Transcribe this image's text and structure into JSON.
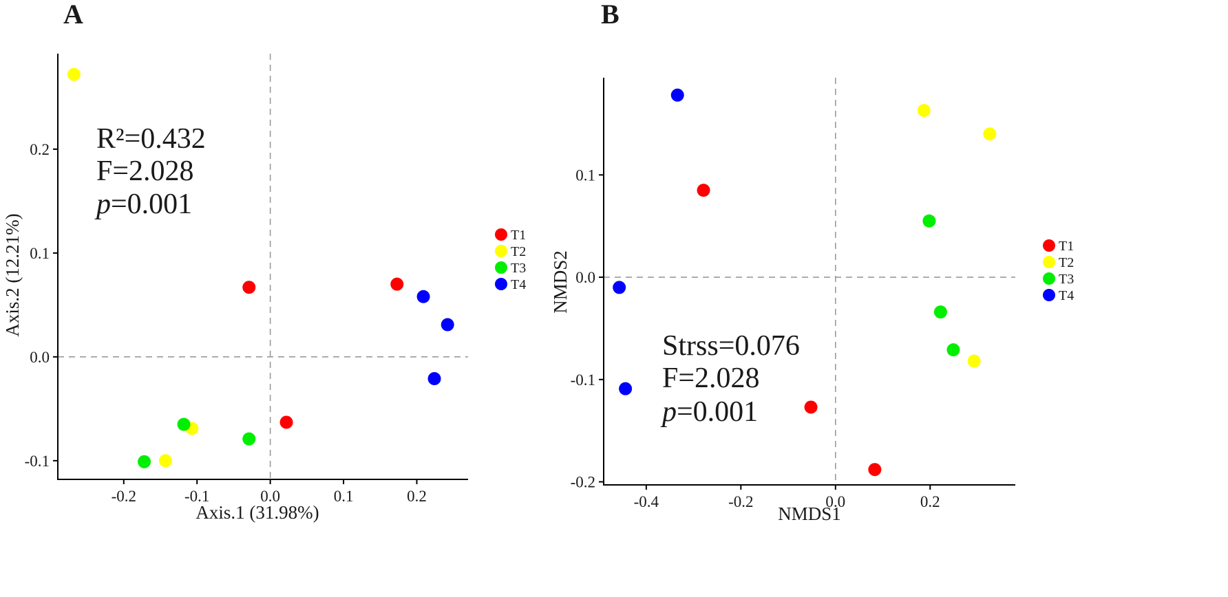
{
  "colors": {
    "T1": "#ff0000",
    "T2": "#ffff00",
    "T3": "#00ee00",
    "T4": "#0000ff"
  },
  "chart_data": [
    {
      "panel": "A",
      "type": "scatter",
      "title": "",
      "xlabel": "Axis.1 (31.98%)",
      "ylabel": "Axis.2 (12.21%)",
      "xlim": [
        -0.29,
        0.27
      ],
      "ylim": [
        -0.118,
        0.292
      ],
      "xticks": [
        -0.2,
        -0.1,
        0.0,
        0.1,
        0.2
      ],
      "xtick_labels": [
        "-0.2",
        "-0.1",
        "0.0",
        "0.1",
        "0.2"
      ],
      "yticks": [
        -0.1,
        0.0,
        0.1,
        0.2
      ],
      "ytick_labels": [
        "-0.1",
        "0.0",
        "0.1",
        "0.2"
      ],
      "annotations": [
        "R²=0.432",
        "F=2.028",
        "p=0.001"
      ],
      "legend": [
        "T1",
        "T2",
        "T3",
        "T4"
      ],
      "series": [
        {
          "name": "T1",
          "points": [
            [
              -0.029,
              0.067
            ],
            [
              0.022,
              -0.063
            ],
            [
              0.173,
              0.07
            ]
          ]
        },
        {
          "name": "T2",
          "points": [
            [
              -0.268,
              0.272
            ],
            [
              -0.107,
              -0.069
            ],
            [
              -0.143,
              -0.1
            ]
          ]
        },
        {
          "name": "T3",
          "points": [
            [
              -0.118,
              -0.065
            ],
            [
              -0.029,
              -0.079
            ],
            [
              -0.172,
              -0.101
            ]
          ]
        },
        {
          "name": "T4",
          "points": [
            [
              0.209,
              0.058
            ],
            [
              0.242,
              0.031
            ],
            [
              0.224,
              -0.021
            ]
          ]
        }
      ]
    },
    {
      "panel": "B",
      "type": "scatter",
      "title": "",
      "xlabel": "NMDS1",
      "ylabel": "NMDS2",
      "xlim": [
        -0.49,
        0.38
      ],
      "ylim": [
        -0.203,
        0.195
      ],
      "xticks": [
        -0.4,
        -0.2,
        0.0,
        0.2
      ],
      "xtick_labels": [
        "-0.4",
        "-0.2",
        "0.0",
        "0.2"
      ],
      "yticks": [
        -0.2,
        -0.1,
        0.0,
        0.1
      ],
      "ytick_labels": [
        "-0.2",
        "-0.1",
        "0.0",
        "0.1"
      ],
      "annotations": [
        "Strss=0.076",
        "F=2.028",
        "p=0.001"
      ],
      "legend": [
        "T1",
        "T2",
        "T3",
        "T4"
      ],
      "series": [
        {
          "name": "T1",
          "points": [
            [
              -0.279,
              0.085
            ],
            [
              -0.052,
              -0.127
            ],
            [
              0.083,
              -0.188
            ]
          ]
        },
        {
          "name": "T2",
          "points": [
            [
              0.187,
              0.163
            ],
            [
              0.326,
              0.14
            ],
            [
              0.293,
              -0.082
            ]
          ]
        },
        {
          "name": "T3",
          "points": [
            [
              0.198,
              0.055
            ],
            [
              0.222,
              -0.034
            ],
            [
              0.249,
              -0.071
            ]
          ]
        },
        {
          "name": "T4",
          "points": [
            [
              -0.334,
              0.178
            ],
            [
              -0.457,
              -0.01
            ],
            [
              -0.444,
              -0.109
            ]
          ]
        }
      ]
    }
  ]
}
